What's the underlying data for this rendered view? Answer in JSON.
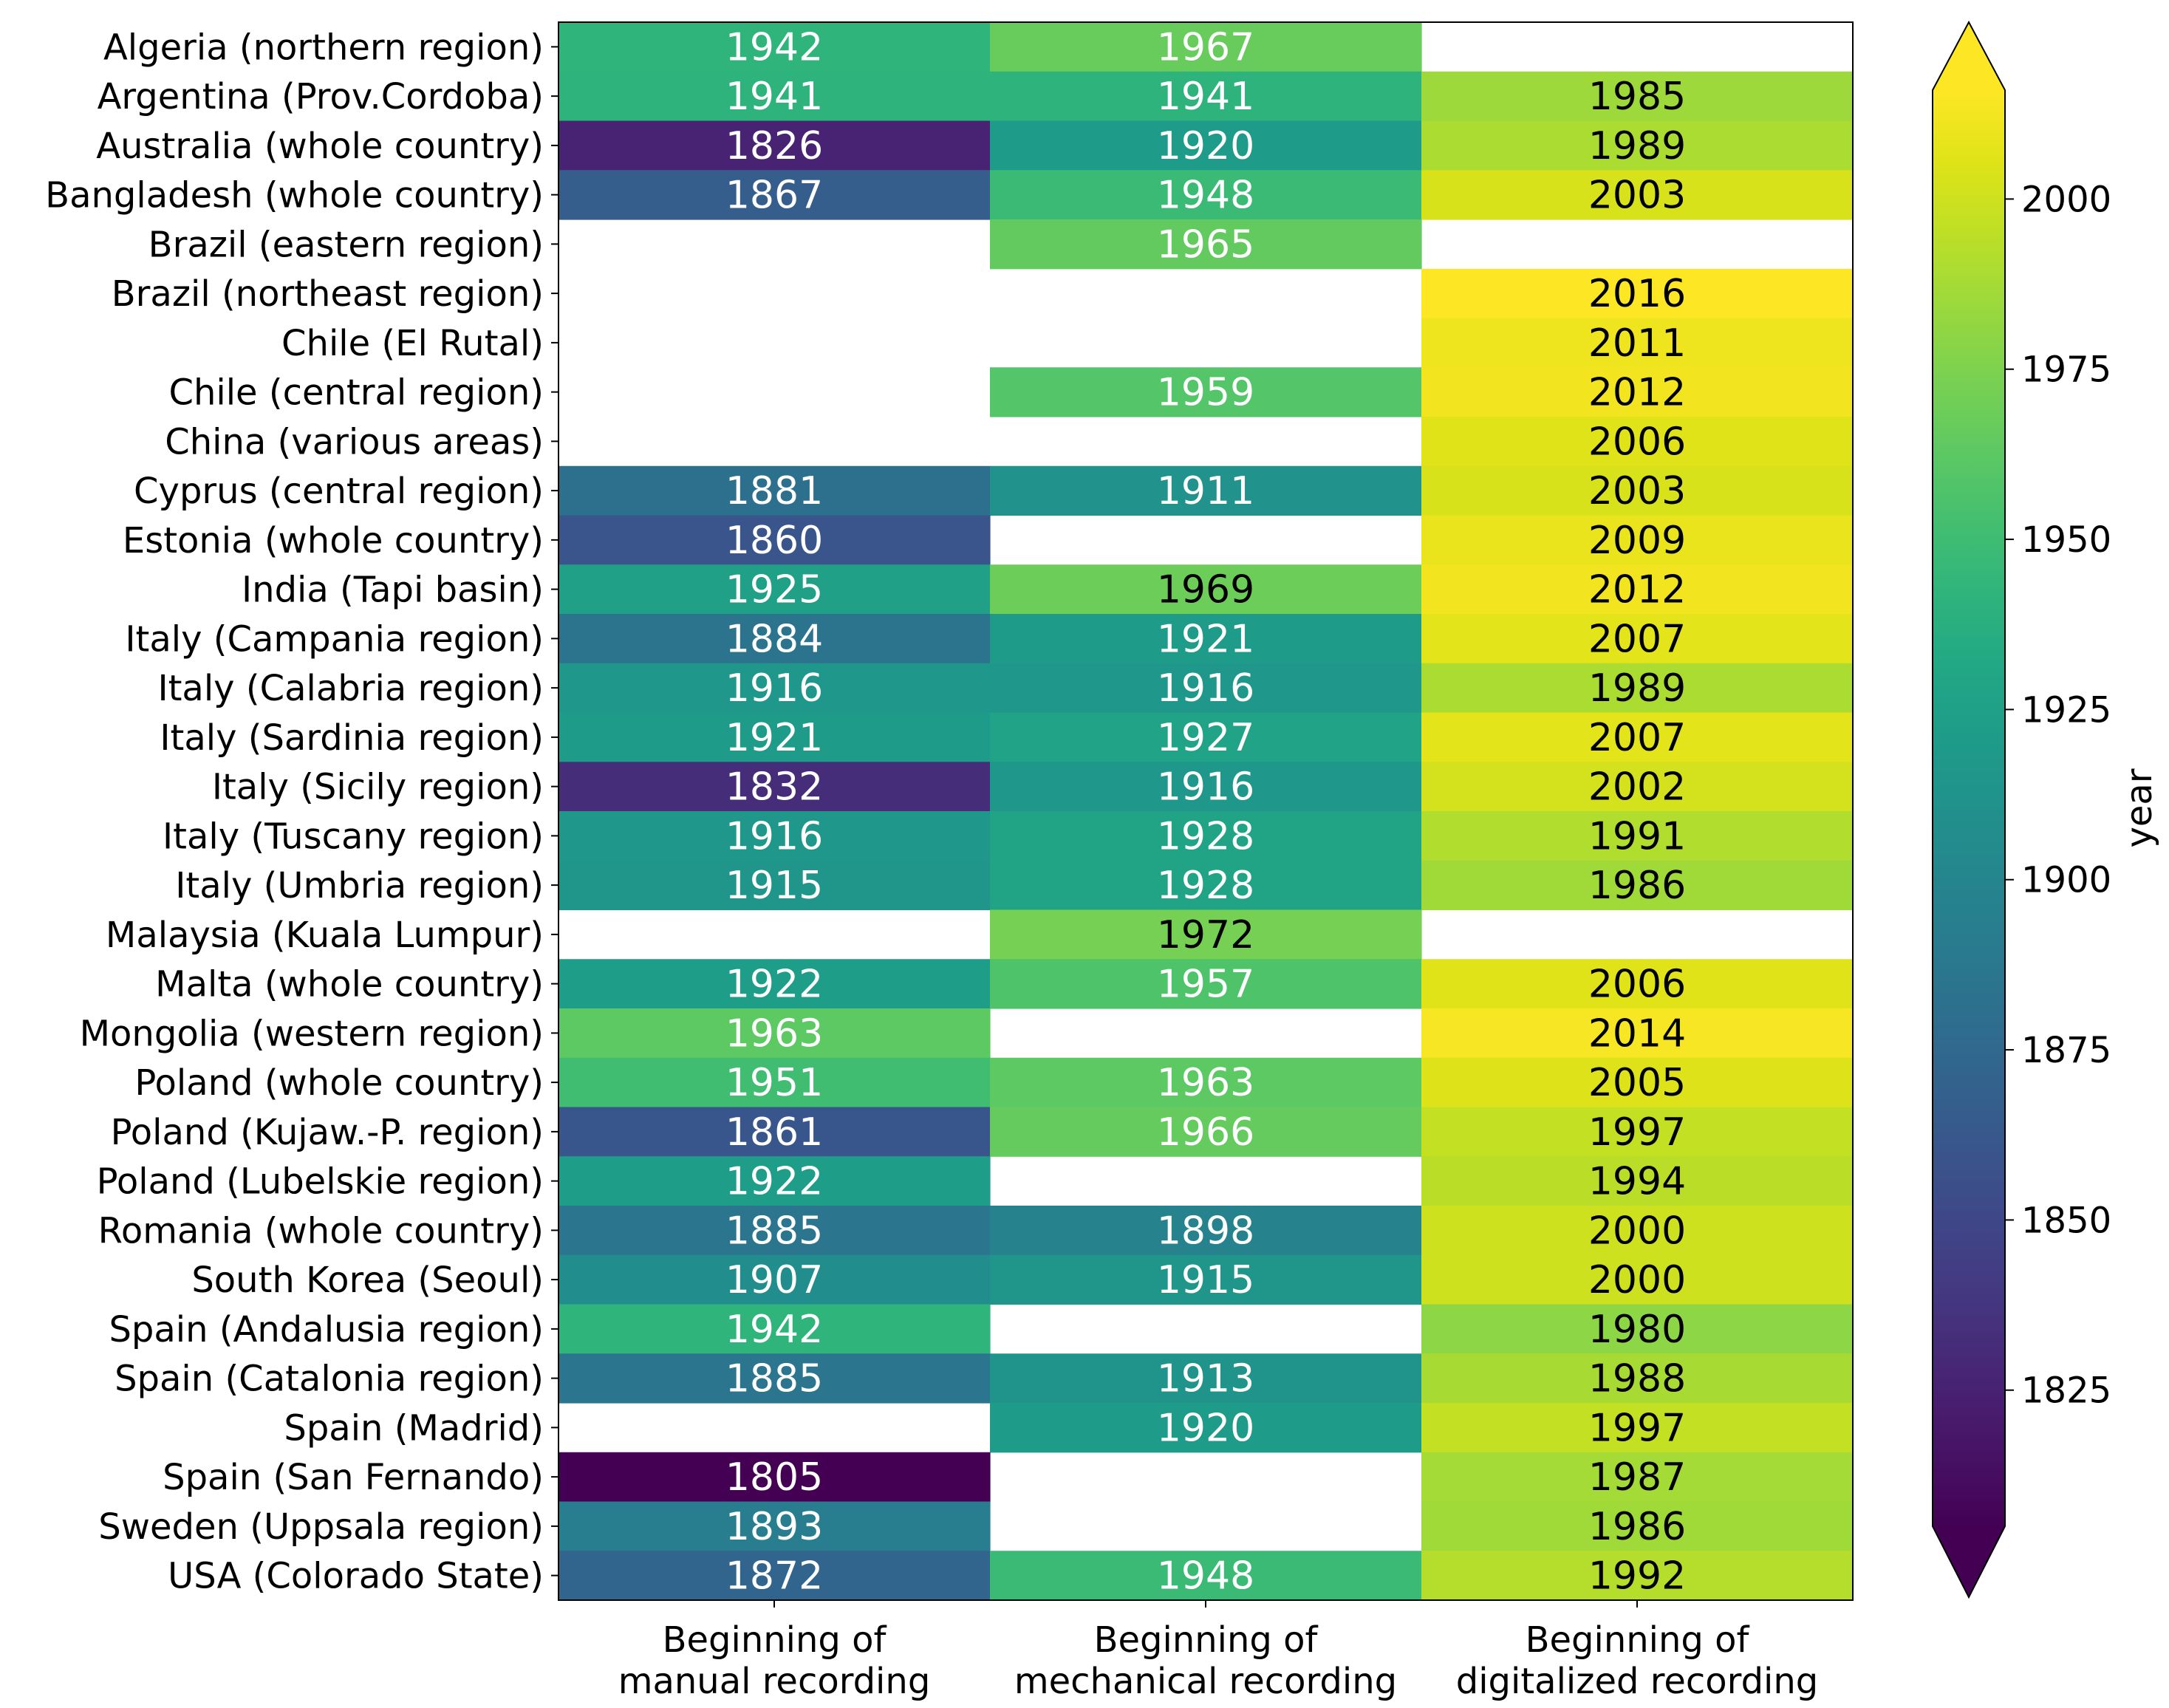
{
  "chart_data": {
    "type": "heatmap",
    "title": "",
    "columns": [
      [
        "Beginning of",
        "manual recording"
      ],
      [
        "Beginning of",
        "mechanical recording"
      ],
      [
        "Beginning of",
        "digitalized recording"
      ]
    ],
    "rows": [
      {
        "label": "Algeria (northern region)",
        "values": [
          1942,
          1967,
          null
        ]
      },
      {
        "label": "Argentina (Prov.Cordoba)",
        "values": [
          1941,
          1941,
          1985
        ]
      },
      {
        "label": "Australia (whole country)",
        "values": [
          1826,
          1920,
          1989
        ]
      },
      {
        "label": "Bangladesh (whole country)",
        "values": [
          1867,
          1948,
          2003
        ]
      },
      {
        "label": "Brazil (eastern region)",
        "values": [
          null,
          1965,
          null
        ]
      },
      {
        "label": "Brazil (northeast region)",
        "values": [
          null,
          null,
          2016
        ]
      },
      {
        "label": "Chile (El Rutal)",
        "values": [
          null,
          null,
          2011
        ]
      },
      {
        "label": "Chile (central region)",
        "values": [
          null,
          1959,
          2012
        ]
      },
      {
        "label": "China (various areas)",
        "values": [
          null,
          null,
          2006
        ]
      },
      {
        "label": "Cyprus (central region)",
        "values": [
          1881,
          1911,
          2003
        ]
      },
      {
        "label": "Estonia (whole country)",
        "values": [
          1860,
          null,
          2009
        ]
      },
      {
        "label": "India (Tapi basin)",
        "values": [
          1925,
          1969,
          2012
        ]
      },
      {
        "label": "Italy (Campania region)",
        "values": [
          1884,
          1921,
          2007
        ]
      },
      {
        "label": "Italy (Calabria region)",
        "values": [
          1916,
          1916,
          1989
        ]
      },
      {
        "label": "Italy (Sardinia region)",
        "values": [
          1921,
          1927,
          2007
        ]
      },
      {
        "label": "Italy (Sicily region)",
        "values": [
          1832,
          1916,
          2002
        ]
      },
      {
        "label": "Italy (Tuscany region)",
        "values": [
          1916,
          1928,
          1991
        ]
      },
      {
        "label": "Italy (Umbria region)",
        "values": [
          1915,
          1928,
          1986
        ]
      },
      {
        "label": "Malaysia (Kuala Lumpur)",
        "values": [
          null,
          1972,
          null
        ]
      },
      {
        "label": "Malta (whole country)",
        "values": [
          1922,
          1957,
          2006
        ]
      },
      {
        "label": "Mongolia (western region)",
        "values": [
          1963,
          null,
          2014
        ]
      },
      {
        "label": "Poland (whole country)",
        "values": [
          1951,
          1963,
          2005
        ]
      },
      {
        "label": "Poland (Kujaw.-P. region)",
        "values": [
          1861,
          1966,
          1997
        ]
      },
      {
        "label": "Poland (Lubelskie region)",
        "values": [
          1922,
          null,
          1994
        ]
      },
      {
        "label": "Romania (whole country)",
        "values": [
          1885,
          1898,
          2000
        ]
      },
      {
        "label": "South Korea (Seoul)",
        "values": [
          1907,
          1915,
          2000
        ]
      },
      {
        "label": "Spain (Andalusia region)",
        "values": [
          1942,
          null,
          1980
        ]
      },
      {
        "label": "Spain (Catalonia region)",
        "values": [
          1885,
          1913,
          1988
        ]
      },
      {
        "label": "Spain (Madrid)",
        "values": [
          null,
          1920,
          1997
        ]
      },
      {
        "label": "Spain (San Fernando)",
        "values": [
          1805,
          null,
          1987
        ]
      },
      {
        "label": "Sweden (Uppsala region)",
        "values": [
          1893,
          null,
          1986
        ]
      },
      {
        "label": "USA (Colorado State)",
        "values": [
          1872,
          1948,
          1992
        ]
      }
    ],
    "colorbar": {
      "label": "year",
      "colormap": "viridis",
      "vmin": 1805,
      "vmax": 2016,
      "extend": "both",
      "ticks": [
        1825,
        1850,
        1875,
        1900,
        1925,
        1950,
        1975,
        2000
      ]
    },
    "annotation_text_colors": {
      "dark_cells": "#ffffff",
      "light_cells": "#000000"
    }
  }
}
